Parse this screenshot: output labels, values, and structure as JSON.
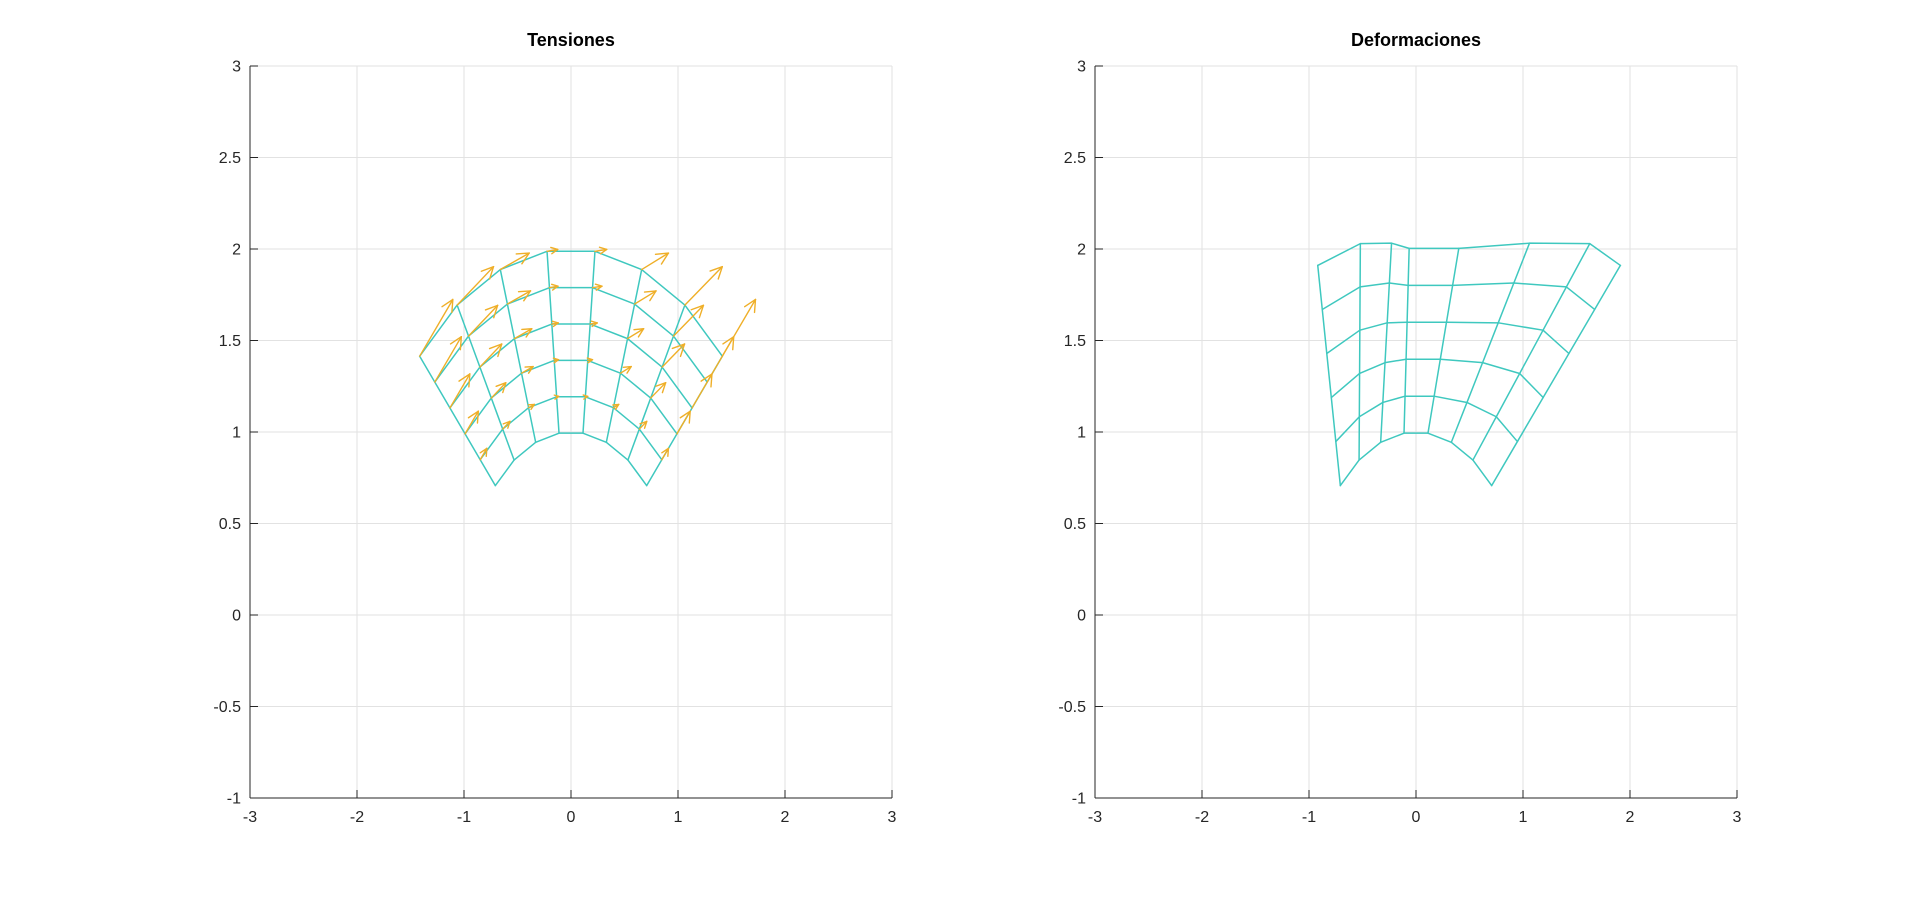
{
  "figure": {
    "background": "#ffffff"
  },
  "style": {
    "mesh_color": "#3fc8bf",
    "quiver_color": "#efaf28",
    "grid_color": "#e2e2e2",
    "axis_color": "#262626",
    "tick_text_color": "#262626",
    "title_color": "#000000"
  },
  "chart_data": [
    {
      "id": "tensiones",
      "type": "quiver_mesh",
      "title": "Tensiones",
      "xlim": [
        -3,
        3
      ],
      "ylim": [
        -1,
        3
      ],
      "xticks": [
        -3,
        -2,
        -1,
        0,
        1,
        2,
        3
      ],
      "xtick_labels": [
        "-3",
        "-2",
        "-1",
        "0",
        "1",
        "2",
        "3"
      ],
      "yticks": [
        -1,
        -0.5,
        0,
        0.5,
        1,
        1.5,
        2,
        2.5,
        3
      ],
      "ytick_labels": [
        "-1",
        "-0.5",
        "0",
        "0.5",
        "1",
        "1.5",
        "2",
        "2.5",
        "3"
      ],
      "grid": true,
      "mesh": {
        "description": "annular sector finite-element mesh, polar grid",
        "r_values": [
          1,
          1.2,
          1.4,
          1.6,
          1.8,
          2
        ],
        "theta_deg": [
          135,
          122.1429,
          109.2857,
          96.4286,
          83.5714,
          70.7143,
          57.8571,
          45
        ]
      },
      "quiver": {
        "description": "stress vectors at mesh nodes; vector = base_vector_of_spoke * (r - 1)",
        "base_vectors_by_spoke": [
          [
            0.31,
            0.31
          ],
          [
            0.34,
            0.21
          ],
          [
            0.27,
            0.09
          ],
          [
            0.1,
            0.01
          ],
          [
            0.11,
            0.01
          ],
          [
            0.25,
            0.09
          ],
          [
            0.35,
            0.21
          ],
          [
            0.31,
            0.31
          ]
        ]
      }
    },
    {
      "id": "deformaciones",
      "type": "deformed_mesh",
      "title": "Deformaciones",
      "xlim": [
        -3,
        3
      ],
      "ylim": [
        -1,
        3
      ],
      "xticks": [
        -3,
        -2,
        -1,
        0,
        1,
        2,
        3
      ],
      "xtick_labels": [
        "-3",
        "-2",
        "-1",
        "0",
        "1",
        "2",
        "3"
      ],
      "yticks": [
        -1,
        -0.5,
        0,
        0.5,
        1,
        1.5,
        2,
        2.5,
        3
      ],
      "ytick_labels": [
        "-1",
        "-0.5",
        "0",
        "0.5",
        "1",
        "1.5",
        "2",
        "2.5",
        "3"
      ],
      "grid": true,
      "mesh": {
        "description": "same annular sector mesh displaced: node + scale * base_vector_of_spoke * (r - 1)",
        "r_values": [
          1,
          1.2,
          1.4,
          1.6,
          1.8,
          2
        ],
        "theta_deg": [
          135,
          122.1429,
          109.2857,
          96.4286,
          83.5714,
          70.7143,
          57.8571,
          45
        ]
      },
      "deformation": {
        "scale": 1.6,
        "base_vectors_by_spoke": [
          [
            0.31,
            0.31
          ],
          [
            0.34,
            0.21
          ],
          [
            0.27,
            0.09
          ],
          [
            0.1,
            0.01
          ],
          [
            0.11,
            0.01
          ],
          [
            0.25,
            0.09
          ],
          [
            0.35,
            0.21
          ],
          [
            0.31,
            0.31
          ]
        ]
      }
    }
  ]
}
